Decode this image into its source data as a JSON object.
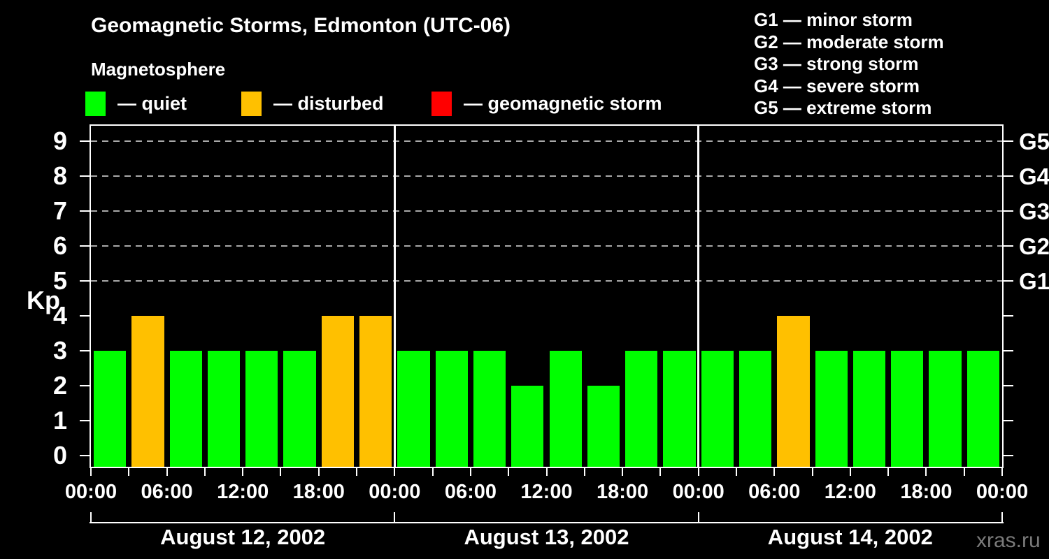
{
  "page": {
    "background": "#000000",
    "text_color": "#ffffff"
  },
  "header": {
    "title": "Geomagnetic Storms, Edmonton (UTC-06)",
    "subtitle": "Magnetosphere"
  },
  "legend": {
    "items": [
      {
        "status": "quiet",
        "label": "— quiet",
        "color": "#00ff00"
      },
      {
        "status": "disturbed",
        "label": "— disturbed",
        "color": "#ffc000"
      },
      {
        "status": "storm",
        "label": "— geomagnetic storm",
        "color": "#ff0000"
      }
    ]
  },
  "storm_scale_legend": {
    "items": [
      "G1 — minor storm",
      "G2 — moderate storm",
      "G3 — strong storm",
      "G4 — severe storm",
      "G5 — extreme storm"
    ]
  },
  "chart_data": {
    "type": "bar",
    "title": "Geomagnetic Storms, Edmonton (UTC-06)",
    "subtitle": "Magnetosphere",
    "ylabel": "Kp",
    "ylim": [
      0,
      9
    ],
    "y_ticks": [
      0,
      1,
      2,
      3,
      4,
      5,
      6,
      7,
      8,
      9
    ],
    "gridlines_at_kp": [
      5,
      6,
      7,
      8,
      9
    ],
    "grid_color": "#a9a9a9",
    "right_axis_labels": [
      {
        "kp": 5,
        "label": "G1"
      },
      {
        "kp": 6,
        "label": "G2"
      },
      {
        "kp": 7,
        "label": "G3"
      },
      {
        "kp": 8,
        "label": "G4"
      },
      {
        "kp": 9,
        "label": "G5"
      }
    ],
    "x_tick_labels_cycle": [
      "00:00",
      "06:00",
      "12:00",
      "18:00"
    ],
    "x_end_label": "00:00",
    "hours_per_bar": 3,
    "bar_colors": {
      "quiet": "#00ff00",
      "disturbed": "#ffc000",
      "storm": "#ff0000"
    },
    "days": [
      {
        "date_label": "August 12, 2002",
        "kp": [
          3,
          4,
          3,
          3,
          3,
          3,
          4,
          4
        ],
        "status": [
          "quiet",
          "disturbed",
          "quiet",
          "quiet",
          "quiet",
          "quiet",
          "disturbed",
          "disturbed"
        ]
      },
      {
        "date_label": "August 13, 2002",
        "kp": [
          3,
          3,
          3,
          2,
          3,
          2,
          3,
          3
        ],
        "status": [
          "quiet",
          "quiet",
          "quiet",
          "quiet",
          "quiet",
          "quiet",
          "quiet",
          "quiet"
        ]
      },
      {
        "date_label": "August 14, 2002",
        "kp": [
          3,
          3,
          4,
          3,
          3,
          3,
          3,
          3
        ],
        "status": [
          "quiet",
          "quiet",
          "disturbed",
          "quiet",
          "quiet",
          "quiet",
          "quiet",
          "quiet"
        ]
      }
    ]
  },
  "watermark": "xras.ru"
}
